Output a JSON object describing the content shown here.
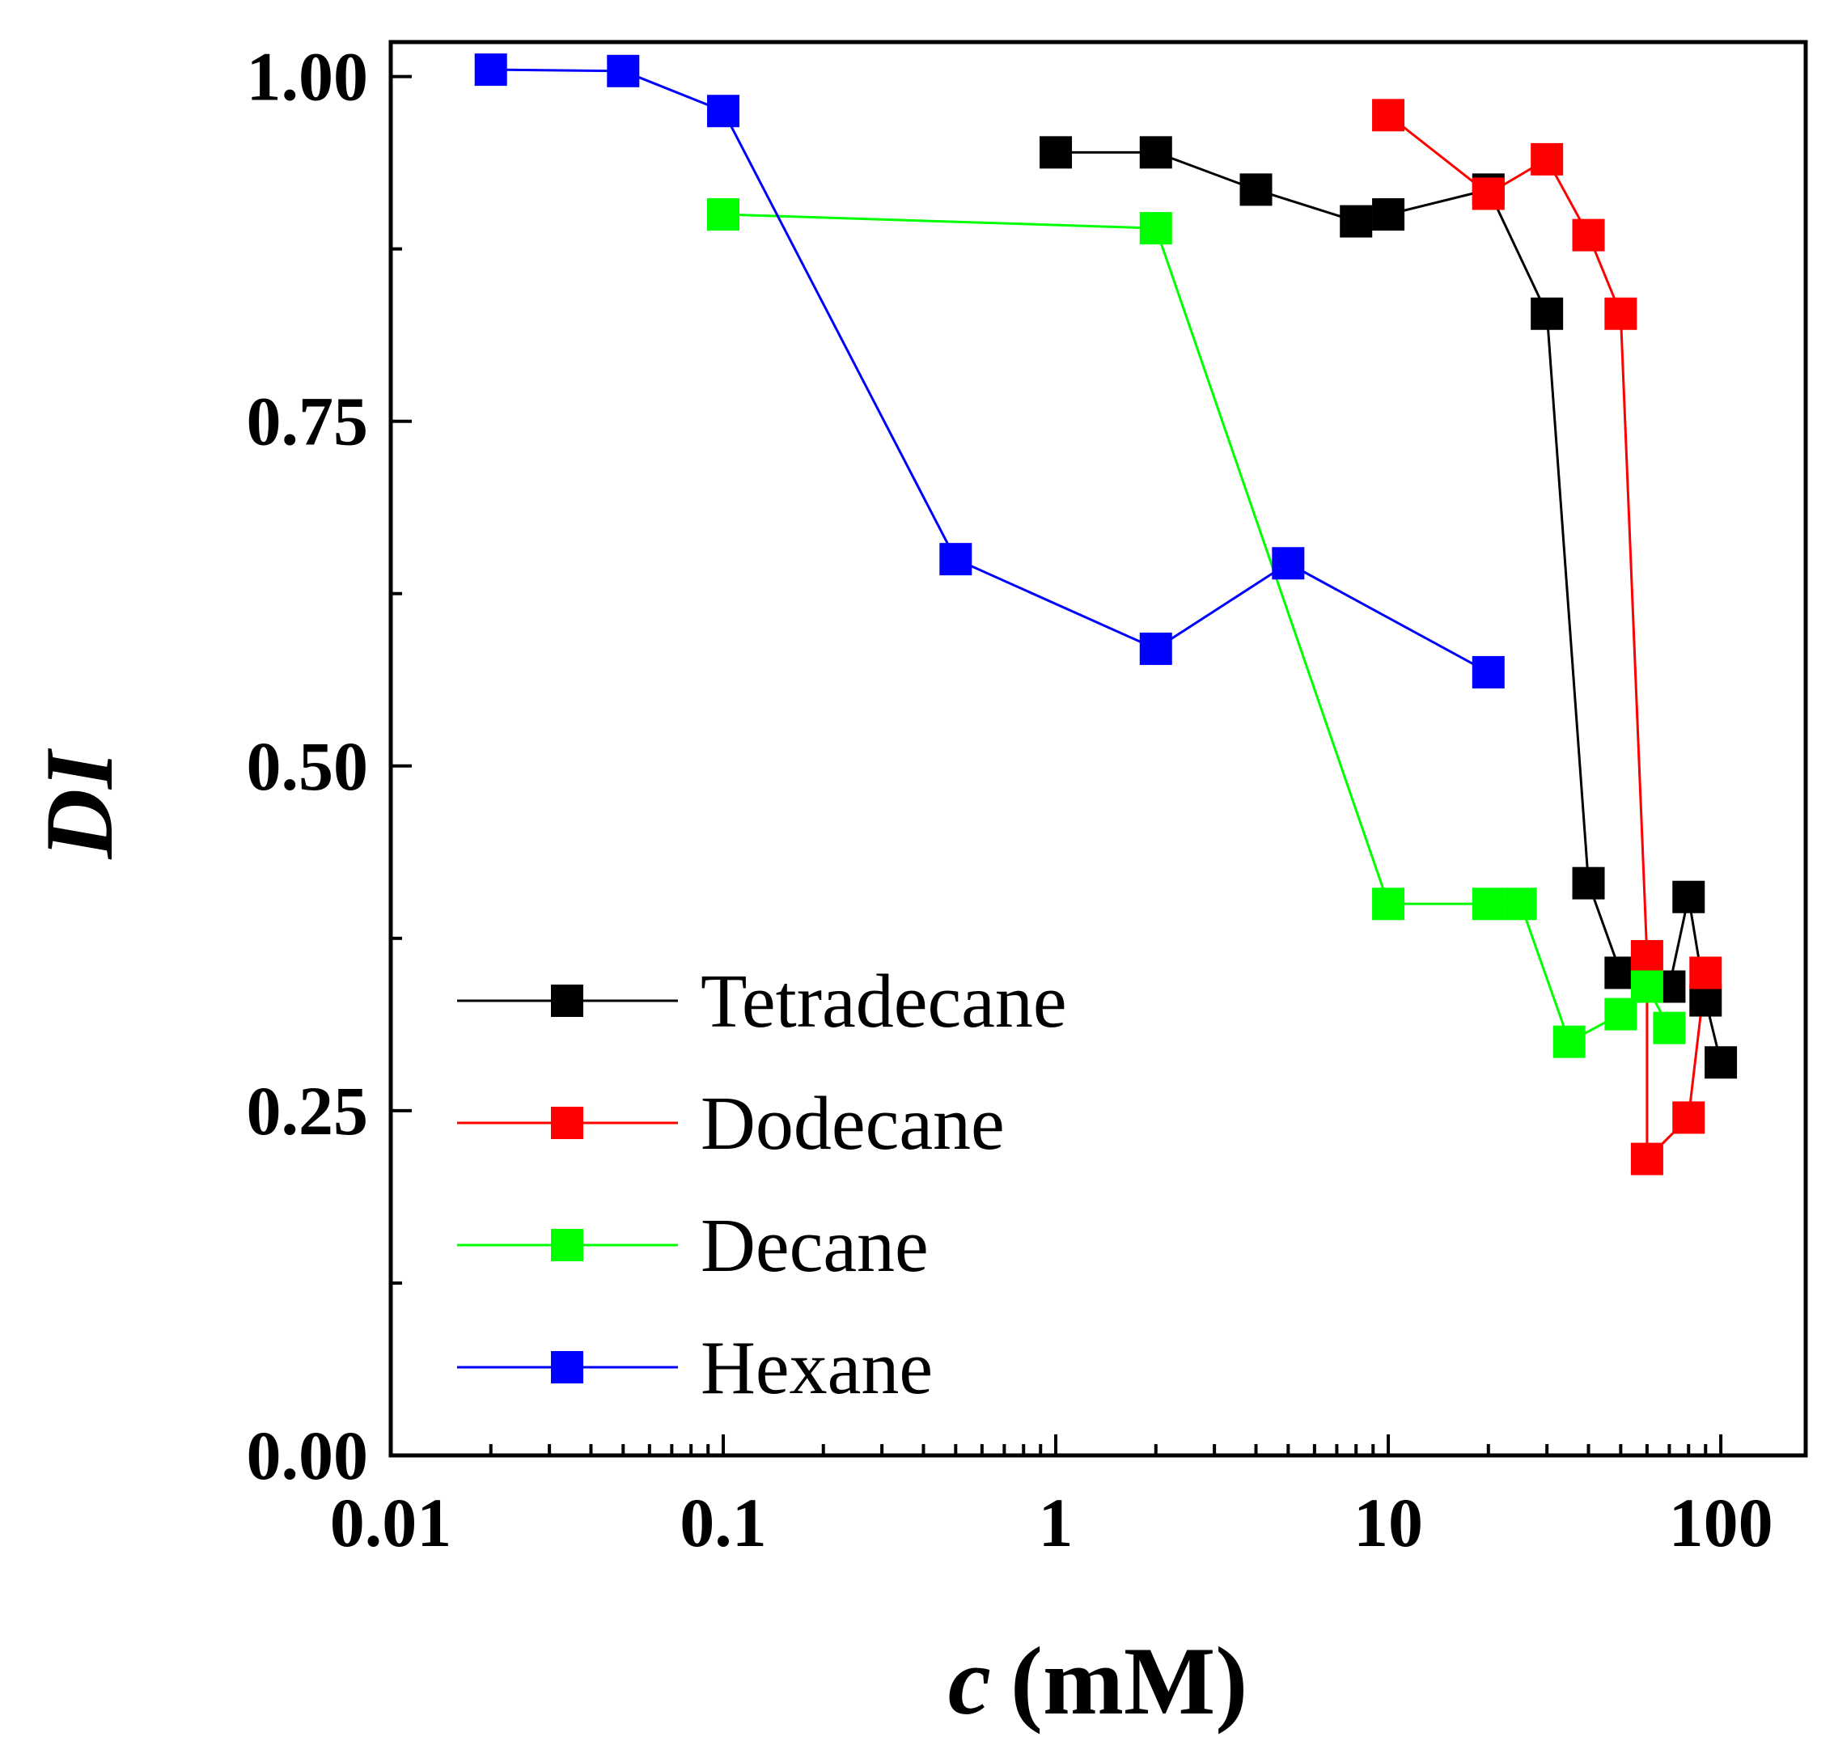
{
  "chart_data": {
    "type": "line",
    "title": "",
    "xlabel": {
      "var": "c",
      "unit": "(mM)"
    },
    "ylabel": "DI",
    "xscale": "log",
    "xlim": [
      0.01,
      180
    ],
    "ylim": [
      0,
      1.025
    ],
    "xticks": [
      {
        "value": 0.01,
        "label": "0.01"
      },
      {
        "value": 0.1,
        "label": "0.1"
      },
      {
        "value": 1,
        "label": "1"
      },
      {
        "value": 10,
        "label": "10"
      },
      {
        "value": 100,
        "label": "100"
      }
    ],
    "yticks": [
      {
        "value": 0.0,
        "label": "0.00"
      },
      {
        "value": 0.25,
        "label": "0.25"
      },
      {
        "value": 0.5,
        "label": "0.50"
      },
      {
        "value": 0.75,
        "label": "0.75"
      },
      {
        "value": 1.0,
        "label": "1.00"
      }
    ],
    "yminor": [
      0.125,
      0.375,
      0.625,
      0.875
    ],
    "legend_position": "bottom-left",
    "series": [
      {
        "name": "Tetradecane",
        "color": "#000000",
        "marker": "square",
        "x": [
          1,
          2,
          4,
          8,
          10,
          20,
          30,
          40,
          50,
          70,
          80,
          90,
          100
        ],
        "y": [
          0.945,
          0.945,
          0.918,
          0.895,
          0.9,
          0.918,
          0.828,
          0.415,
          0.35,
          0.34,
          0.405,
          0.33,
          0.285
        ]
      },
      {
        "name": "Dodecane",
        "color": "#ff0000",
        "marker": "square",
        "x": [
          10,
          20,
          30,
          40,
          50,
          60,
          60,
          80,
          90
        ],
        "y": [
          0.972,
          0.915,
          0.94,
          0.885,
          0.828,
          0.362,
          0.215,
          0.245,
          0.35
        ]
      },
      {
        "name": "Decane",
        "color": "#00ff00",
        "marker": "square",
        "x": [
          0.1,
          2,
          10,
          20,
          25,
          35,
          50,
          60,
          70
        ],
        "y": [
          0.9,
          0.89,
          0.4,
          0.4,
          0.4,
          0.3,
          0.32,
          0.34,
          0.31
        ]
      },
      {
        "name": "Hexane",
        "color": "#0000ff",
        "marker": "square",
        "x": [
          0.02,
          0.05,
          0.1,
          0.5,
          2,
          5,
          20
        ],
        "y": [
          1.005,
          1.004,
          0.975,
          0.65,
          0.585,
          0.647,
          0.568
        ]
      }
    ]
  }
}
